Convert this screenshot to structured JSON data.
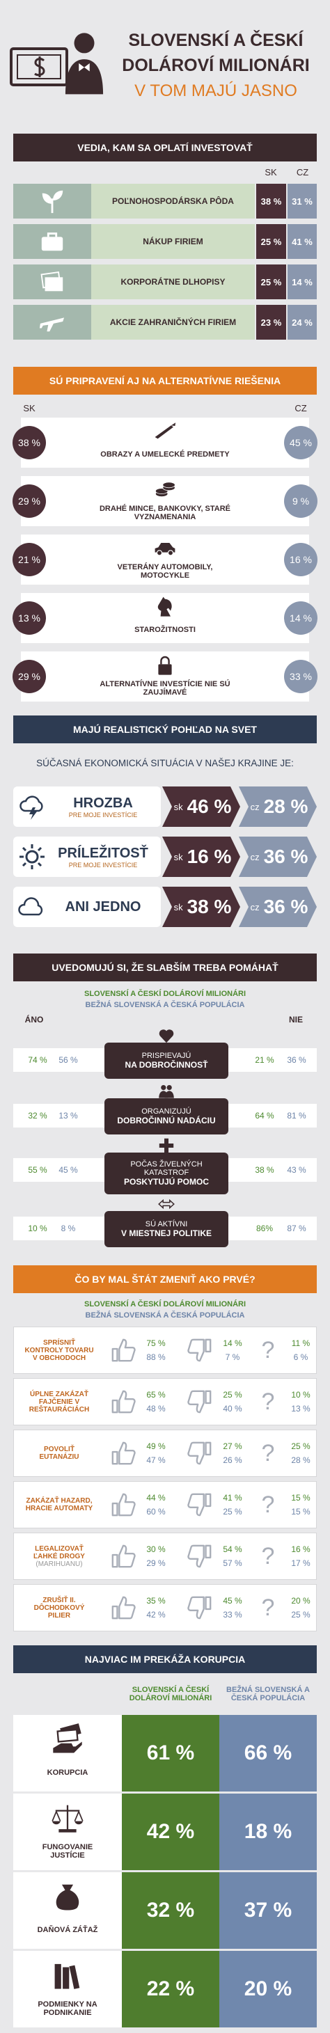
{
  "header": {
    "title_lines": [
      "SLOVENSKÍ A ČESKÍ",
      "DOLÁROVÍ MILIONÁRI"
    ],
    "subtitle": "V TOM MAJÚ JASNO"
  },
  "investments": {
    "title": "VEDIA, KAM SA OPLATÍ INVESTOVAŤ",
    "col_sk": "SK",
    "col_cz": "CZ",
    "rows": [
      {
        "label": "POĽNOHOSPODÁRSKA PÔDA",
        "sk": "38 %",
        "cz": "31 %"
      },
      {
        "label": "NÁKUP FIRIEM",
        "sk": "25 %",
        "cz": "41 %"
      },
      {
        "label": "KORPORÁTNE DLHOPISY",
        "sk": "25 %",
        "cz": "14 %"
      },
      {
        "label": "AKCIE ZAHRANIČNÝCH FIRIEM",
        "sk": "23 %",
        "cz": "24 %"
      }
    ]
  },
  "alternatives": {
    "title": "SÚ PRIPRAVENÍ AJ NA ALTERNATÍVNE RIEŠENIA",
    "col_sk": "SK",
    "col_cz": "CZ",
    "rows": [
      {
        "label": "OBRAZY A UMELECKÉ PREDMETY",
        "sk": "38 %",
        "cz": "45 %"
      },
      {
        "label": "DRAHÉ MINCE, BANKOVKY, STARÉ VYZNAMENANIA",
        "sk": "29 %",
        "cz": "9 %"
      },
      {
        "label": "VETERÁNY AUTOMOBILY, MOTOCYKLE",
        "sk": "21 %",
        "cz": "16 %"
      },
      {
        "label": "STAROŽITNOSTI",
        "sk": "13 %",
        "cz": "14 %"
      },
      {
        "label": "ALTERNATÍVNE INVESTÍCIE NIE SÚ ZAUJÍMAVÉ",
        "sk": "29 %",
        "cz": "33 %"
      }
    ]
  },
  "outlook": {
    "title": "MAJÚ REALISTICKÝ POHĽAD NA SVET",
    "subtitle": "SÚČASNÁ EKONOMICKÁ SITUÁCIA V NAŠEJ KRAJINE JE:",
    "tag_sk": "sk",
    "tag_cz": "cz",
    "rows": [
      {
        "label": "HROZBA",
        "note": "PRE MOJE INVESTÍCIE",
        "sk": "46 %",
        "cz": "28 %"
      },
      {
        "label": "PRÍLEŽITOSŤ",
        "note": "PRE MOJE INVESTÍCIE",
        "sk": "16 %",
        "cz": "36 %"
      },
      {
        "label": "ANI JEDNO",
        "sk": "38 %",
        "cz": "36 %"
      }
    ]
  },
  "help": {
    "title": "UVEDOMUJÚ SI, ŽE SLABŠÍM TREBA POMÁHAŤ",
    "legend_a": "SLOVENSKÍ A ČESKÍ DOLÁROVÍ MILIONÁRI",
    "legend_b": "BEŽNÁ SLOVENSKÁ A ČESKÁ POPULÁCIA",
    "yes": "ÁNO",
    "no": "NIE",
    "rows": [
      {
        "label": "PRISPIEVAJÚ",
        "label_bold": "NA DOBROČINNOSŤ",
        "yes_a": "74 %",
        "yes_b": "56 %",
        "no_a": "21 %",
        "no_b": "36 %"
      },
      {
        "label": "ORGANIZUJÚ",
        "label_bold": "DOBROČINNÚ NADÁCIU",
        "yes_a": "32 %",
        "yes_b": "13 %",
        "no_a": "64 %",
        "no_b": "81 %"
      },
      {
        "label": "POČAS ŽIVELNÝCH KATASTROF",
        "label_bold": "POSKYTUJÚ POMOC",
        "yes_a": "55 %",
        "yes_b": "45 %",
        "no_a": "38 %",
        "no_b": "43 %"
      },
      {
        "label": "SÚ AKTÍVNI",
        "label_bold": "V MIESTNEJ POLITIKE",
        "yes_a": "10 %",
        "yes_b": "8 %",
        "no_a": "86%",
        "no_b": "87 %"
      }
    ]
  },
  "state": {
    "title": "ČO BY MAL ŠTÁT ZMENIŤ AKO PRVÉ?",
    "legend_a": "SLOVENSKÍ A ČESKÍ DOLÁROVÍ MILIONÁRI",
    "legend_b": "BEŽNÁ SLOVENSKÁ A ČESKÁ POPULÁCIA",
    "unsure_symbol": "?",
    "rows": [
      {
        "label": "SPRÍSNIŤ KONTROLY TOVARU V OBCHODOCH",
        "yes": [
          "75 %",
          "88 %"
        ],
        "no": [
          "14 %",
          "7 %"
        ],
        "unsure": [
          "11 %",
          "6 %"
        ]
      },
      {
        "label": "ÚPLNE ZAKÁZAŤ FAJČENIE V REŠTAURÁCIÁCH",
        "yes": [
          "65 %",
          "48 %"
        ],
        "no": [
          "25 %",
          "40 %"
        ],
        "unsure": [
          "10 %",
          "13 %"
        ]
      },
      {
        "label": "POVOLIŤ EUTANÁZIU",
        "yes": [
          "49 %",
          "47 %"
        ],
        "no": [
          "27 %",
          "26 %"
        ],
        "unsure": [
          "25 %",
          "28 %"
        ]
      },
      {
        "label": "ZAKÁZAŤ HAZARD, HRACIE AUTOMATY",
        "yes": [
          "44 %",
          "60 %"
        ],
        "no": [
          "41 %",
          "25 %"
        ],
        "unsure": [
          "15 %",
          "15 %"
        ]
      },
      {
        "label": "LEGALIZOVAŤ ĽAHKÉ DROGY",
        "note": "(MARIHUANU)",
        "yes": [
          "30 %",
          "29 %"
        ],
        "no": [
          "54 %",
          "57 %"
        ],
        "unsure": [
          "16 %",
          "17 %"
        ]
      },
      {
        "label": "ZRUŠIŤ II. DÔCHODKOVÝ PILIER",
        "yes": [
          "35 %",
          "42 %"
        ],
        "no": [
          "45 %",
          "33 %"
        ],
        "unsure": [
          "20 %",
          "25 %"
        ]
      }
    ]
  },
  "corruption": {
    "title": "NAJVIAC IM PREKÁŽA KORUPCIA",
    "col_a": "SLOVENSKÍ A ČESKÍ DOLÁROVÍ MILIONÁRI",
    "col_b": "BEŽNÁ SLOVENSKÁ A ČESKÁ POPULÁCIA",
    "rows": [
      {
        "label": "KORUPCIA",
        "a": "61 %",
        "b": "66 %"
      },
      {
        "label": "FUNGOVANIE JUSTÍCIE",
        "a": "42 %",
        "b": "18 %"
      },
      {
        "label": "DAŇOVÁ ZÁŤAŽ",
        "a": "32 %",
        "b": "37 %"
      },
      {
        "label": "PODMIENKY NA PODNIKANIE",
        "a": "22 %",
        "b": "20 %"
      }
    ]
  }
}
